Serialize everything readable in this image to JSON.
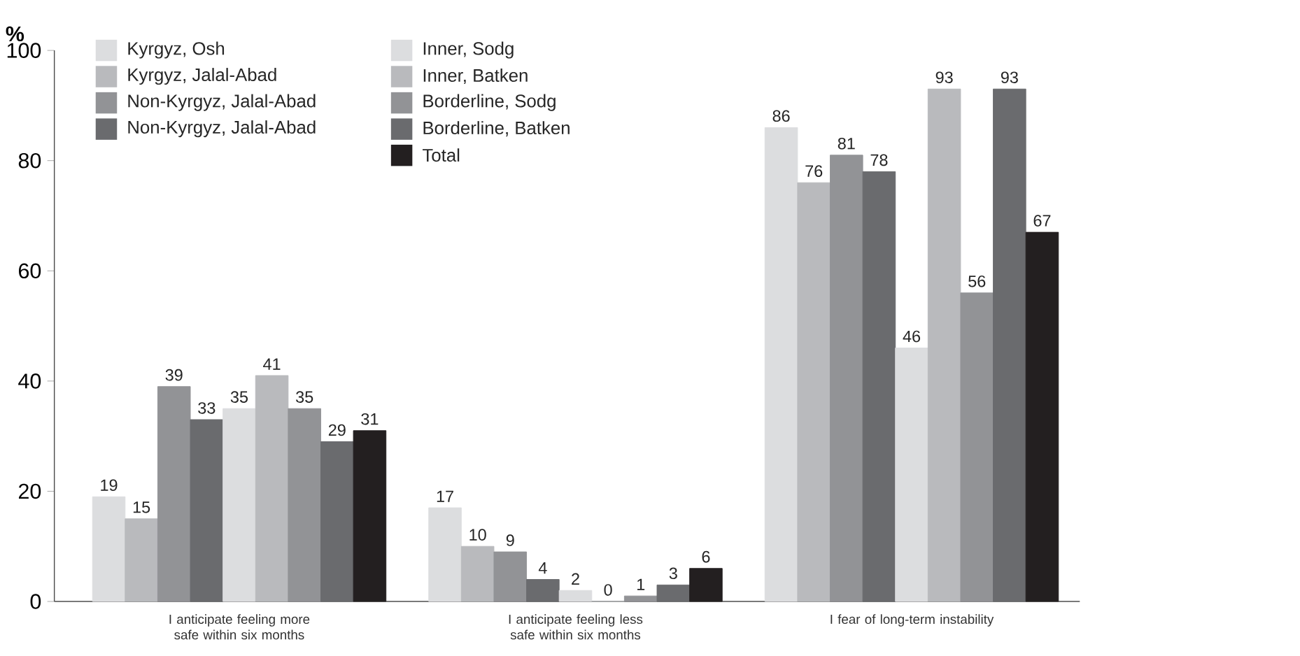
{
  "chart_data": {
    "type": "bar",
    "ylabel": "%",
    "categories": [
      "I anticipate feeling more safe within six months",
      "I anticipate feeling less safe within six months",
      "I fear of long-term instability"
    ],
    "series": [
      {
        "name": "Kyrgyz, Osh",
        "color": "#dcdddf",
        "values": [
          19,
          17,
          86
        ]
      },
      {
        "name": "Kyrgyz, Jalal-Abad",
        "color": "#b9babd",
        "values": [
          15,
          10,
          76
        ]
      },
      {
        "name": "Non-Kyrgyz, Jalal-Abad",
        "color": "#929396",
        "values": [
          39,
          9,
          81
        ]
      },
      {
        "name": "Non-Kyrgyz, Jalal-Abad",
        "color": "#6a6b6e",
        "values": [
          33,
          4,
          78
        ]
      },
      {
        "name": "Inner, Sodg",
        "color": "#dcdddf",
        "values": [
          35,
          2,
          46
        ]
      },
      {
        "name": "Inner, Batken",
        "color": "#b9babd",
        "values": [
          41,
          0,
          93
        ]
      },
      {
        "name": "Borderline, Sodg",
        "color": "#929396",
        "values": [
          35,
          1,
          56
        ]
      },
      {
        "name": "Borderline, Batken",
        "color": "#6a6b6e",
        "values": [
          29,
          3,
          93
        ]
      },
      {
        "name": "Total",
        "color": "#231f20",
        "values": [
          31,
          6,
          67
        ]
      }
    ],
    "ylim": [
      0,
      100
    ],
    "yticks": [
      0,
      20,
      40,
      60,
      80,
      100
    ],
    "data_labels": true,
    "legend": "top left",
    "grid": false
  }
}
